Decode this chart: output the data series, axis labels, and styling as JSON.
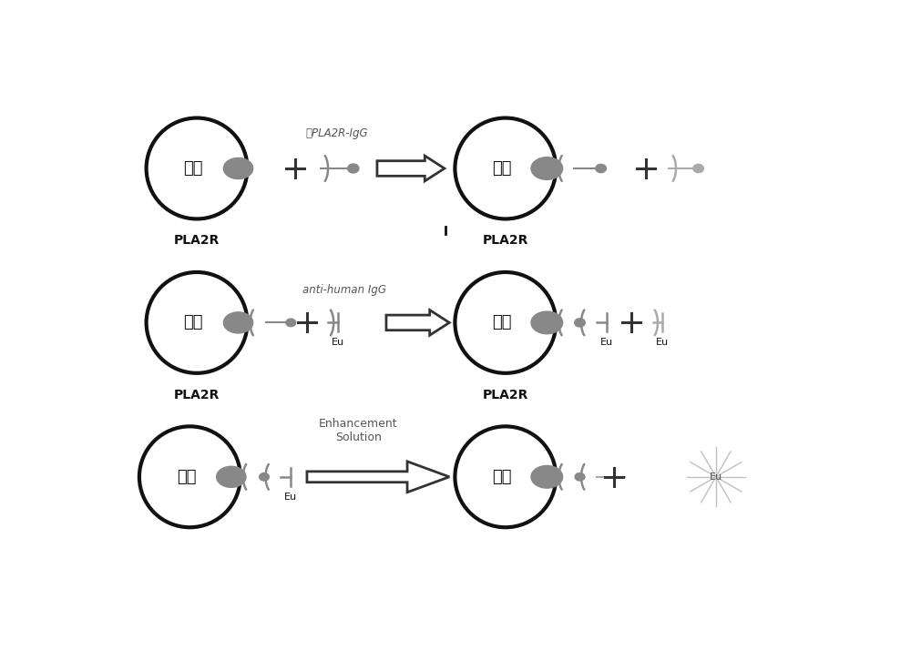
{
  "bg_color": "#ffffff",
  "gray": "#888888",
  "dark_gray": "#666666",
  "dark": "#111111",
  "light_gray": "#bbbbbb",
  "text_gray": "#555555",
  "chinese_bead_label": "磁珠",
  "pla2r_label": "PLA2R",
  "row1_ab_label": "抗PLA2R-IgG",
  "row2_ab_label": "anti-human IgG",
  "row3_arrow_label": "Enhancement\nSolution",
  "eu_label": "Eu"
}
